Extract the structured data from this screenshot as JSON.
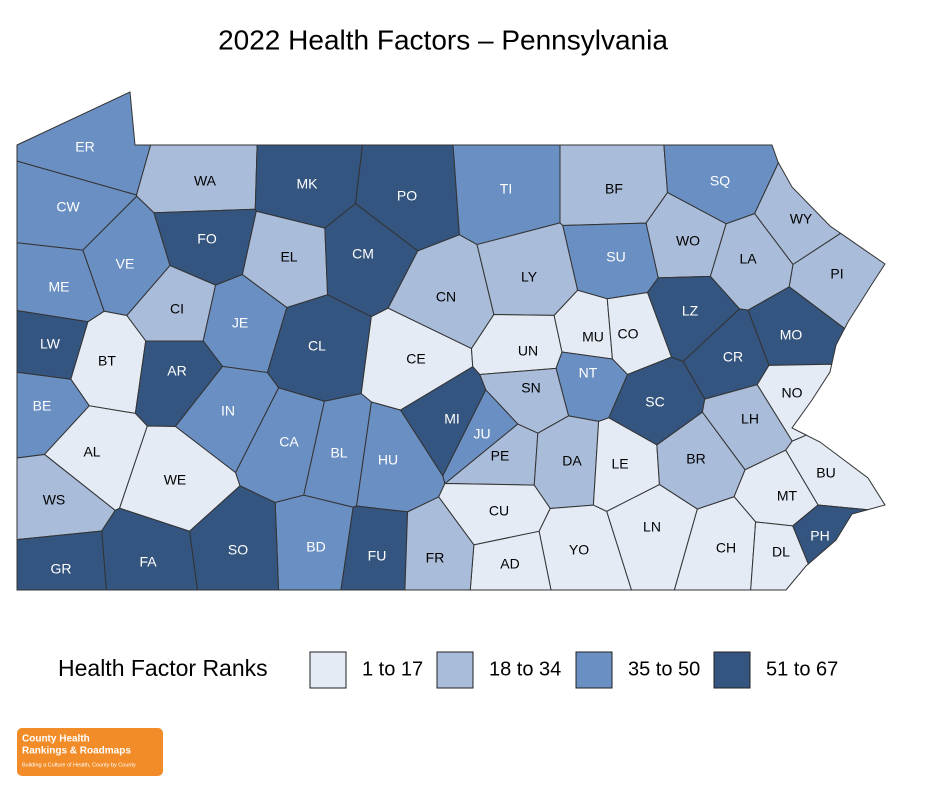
{
  "title": "2022 Health Factors – Pennsylvania",
  "legend": {
    "title": "Health Factor Ranks",
    "items": [
      {
        "label": "1 to 17",
        "color": "#e4ebf5"
      },
      {
        "label": "18 to 34",
        "color": "#a9bcd9"
      },
      {
        "label": "35 to 50",
        "color": "#6a8fc3"
      },
      {
        "label": "51 to 67",
        "color": "#34557f"
      }
    ]
  },
  "counties": [
    {
      "label": "ER",
      "group": 2
    },
    {
      "label": "CW",
      "group": 2
    },
    {
      "label": "WA",
      "group": 1
    },
    {
      "label": "MK",
      "group": 3
    },
    {
      "label": "PO",
      "group": 3
    },
    {
      "label": "TI",
      "group": 2
    },
    {
      "label": "BF",
      "group": 1
    },
    {
      "label": "SQ",
      "group": 2
    },
    {
      "label": "WY",
      "group": 1
    },
    {
      "label": "FO",
      "group": 3
    },
    {
      "label": "VE",
      "group": 2
    },
    {
      "label": "EL",
      "group": 1
    },
    {
      "label": "CM",
      "group": 3
    },
    {
      "label": "WO",
      "group": 1
    },
    {
      "label": "SU",
      "group": 2
    },
    {
      "label": "LA",
      "group": 1
    },
    {
      "label": "PI",
      "group": 1
    },
    {
      "label": "ME",
      "group": 2
    },
    {
      "label": "CI",
      "group": 1
    },
    {
      "label": "JE",
      "group": 2
    },
    {
      "label": "CL",
      "group": 3
    },
    {
      "label": "CN",
      "group": 1
    },
    {
      "label": "LY",
      "group": 1
    },
    {
      "label": "LZ",
      "group": 3
    },
    {
      "label": "MO",
      "group": 3
    },
    {
      "label": "LW",
      "group": 3
    },
    {
      "label": "BT",
      "group": 0
    },
    {
      "label": "AR",
      "group": 3
    },
    {
      "label": "CE",
      "group": 0
    },
    {
      "label": "UN",
      "group": 0
    },
    {
      "label": "MU",
      "group": 0
    },
    {
      "label": "CO",
      "group": 0
    },
    {
      "label": "CR",
      "group": 3
    },
    {
      "label": "NT",
      "group": 2
    },
    {
      "label": "SN",
      "group": 1
    },
    {
      "label": "BE",
      "group": 2
    },
    {
      "label": "IN",
      "group": 2
    },
    {
      "label": "MI",
      "group": 3
    },
    {
      "label": "SC",
      "group": 3
    },
    {
      "label": "NO",
      "group": 0
    },
    {
      "label": "LH",
      "group": 1
    },
    {
      "label": "JU",
      "group": 2
    },
    {
      "label": "AL",
      "group": 0
    },
    {
      "label": "CA",
      "group": 2
    },
    {
      "label": "BL",
      "group": 2
    },
    {
      "label": "HU",
      "group": 2
    },
    {
      "label": "PE",
      "group": 1
    },
    {
      "label": "DA",
      "group": 1
    },
    {
      "label": "LE",
      "group": 0
    },
    {
      "label": "BR",
      "group": 1
    },
    {
      "label": "BU",
      "group": 0
    },
    {
      "label": "WE",
      "group": 0
    },
    {
      "label": "MT",
      "group": 0
    },
    {
      "label": "WS",
      "group": 1
    },
    {
      "label": "CU",
      "group": 0
    },
    {
      "label": "LN",
      "group": 0
    },
    {
      "label": "PH",
      "group": 3
    },
    {
      "label": "BD",
      "group": 2
    },
    {
      "label": "SO",
      "group": 3
    },
    {
      "label": "FU",
      "group": 3
    },
    {
      "label": "CH",
      "group": 0
    },
    {
      "label": "DL",
      "group": 0
    },
    {
      "label": "YO",
      "group": 0
    },
    {
      "label": "AD",
      "group": 0
    },
    {
      "label": "FR",
      "group": 1
    },
    {
      "label": "FA",
      "group": 3
    },
    {
      "label": "GR",
      "group": 3
    }
  ],
  "logo": {
    "line1": "County Health",
    "line2": "Rankings & Roadmaps",
    "tagline": "Building a Culture of Health, County by County"
  }
}
